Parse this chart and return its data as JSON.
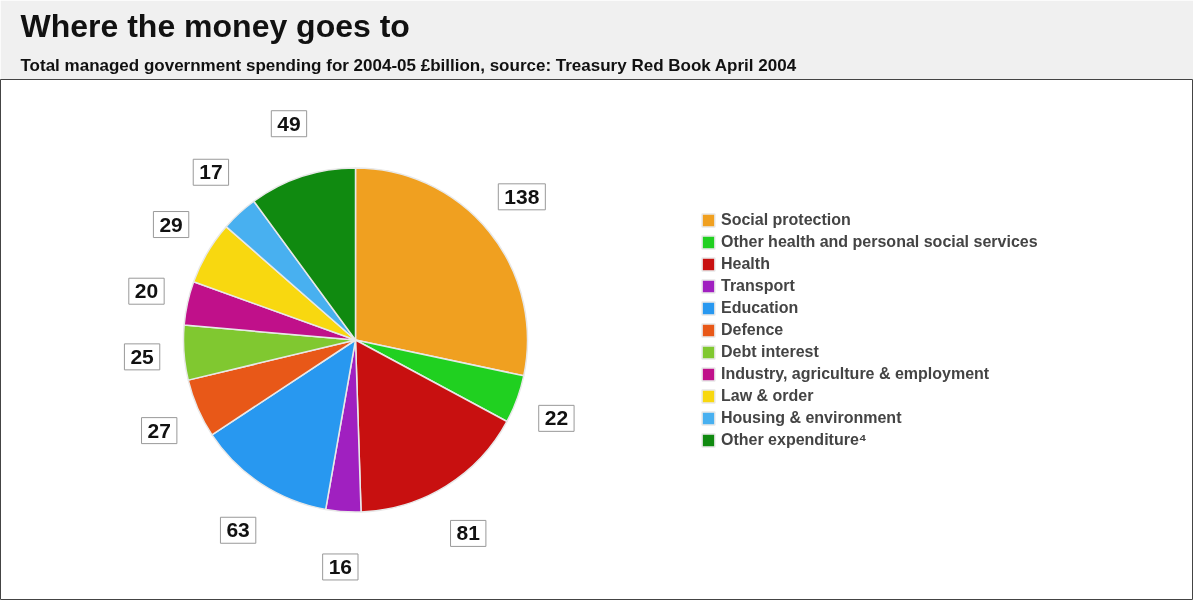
{
  "chart_data": {
    "type": "pie",
    "title": "Where the money goes to",
    "subtitle": "Total managed government spending for 2004-05 £billion, source: Treasury Red Book April 2004",
    "categories": [
      "Social protection",
      "Other health and personal social services",
      "Health",
      "Transport",
      "Education",
      "Defence",
      "Debt interest",
      "Industry, agriculture & employment",
      "Law & order",
      "Housing & environment",
      "Other expenditure⁴"
    ],
    "values": [
      138,
      22,
      81,
      16,
      63,
      27,
      25,
      20,
      29,
      17,
      49
    ],
    "colors": [
      "#f0a020",
      "#20d020",
      "#c81010",
      "#a020c0",
      "#2898f0",
      "#e85818",
      "#80c830",
      "#c0108a",
      "#f8d810",
      "#48b0f0",
      "#108a10"
    ],
    "data_labels": true,
    "legend": "right"
  }
}
